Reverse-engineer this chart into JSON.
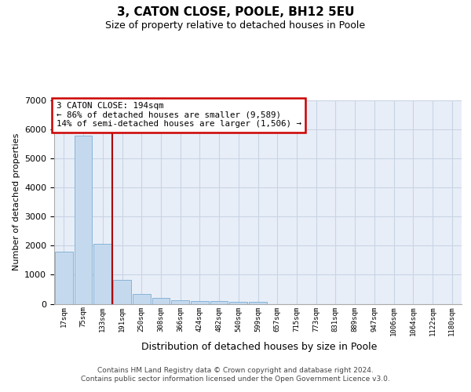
{
  "title": "3, CATON CLOSE, POOLE, BH12 5EU",
  "subtitle": "Size of property relative to detached houses in Poole",
  "xlabel": "Distribution of detached houses by size in Poole",
  "ylabel": "Number of detached properties",
  "bar_color": "#c5d9ee",
  "bar_edge_color": "#7aadd4",
  "grid_color": "#c8d4e4",
  "background_color": "#e8eef8",
  "vline_color": "#aa0000",
  "annotation_text": "3 CATON CLOSE: 194sqm\n← 86% of detached houses are smaller (9,589)\n14% of semi-detached houses are larger (1,506) →",
  "annotation_box_edgecolor": "#cc0000",
  "footer_line1": "Contains HM Land Registry data © Crown copyright and database right 2024.",
  "footer_line2": "Contains public sector information licensed under the Open Government Licence v3.0.",
  "categories": [
    "17sqm",
    "75sqm",
    "133sqm",
    "191sqm",
    "250sqm",
    "308sqm",
    "366sqm",
    "424sqm",
    "482sqm",
    "540sqm",
    "599sqm",
    "657sqm",
    "715sqm",
    "773sqm",
    "831sqm",
    "889sqm",
    "947sqm",
    "1006sqm",
    "1064sqm",
    "1122sqm",
    "1180sqm"
  ],
  "values": [
    1780,
    5780,
    2060,
    830,
    340,
    195,
    120,
    100,
    95,
    75,
    65,
    0,
    0,
    0,
    0,
    0,
    0,
    0,
    0,
    0,
    0
  ],
  "ylim": [
    0,
    7000
  ],
  "yticks": [
    0,
    1000,
    2000,
    3000,
    4000,
    5000,
    6000,
    7000
  ],
  "vline_position": 2.5
}
